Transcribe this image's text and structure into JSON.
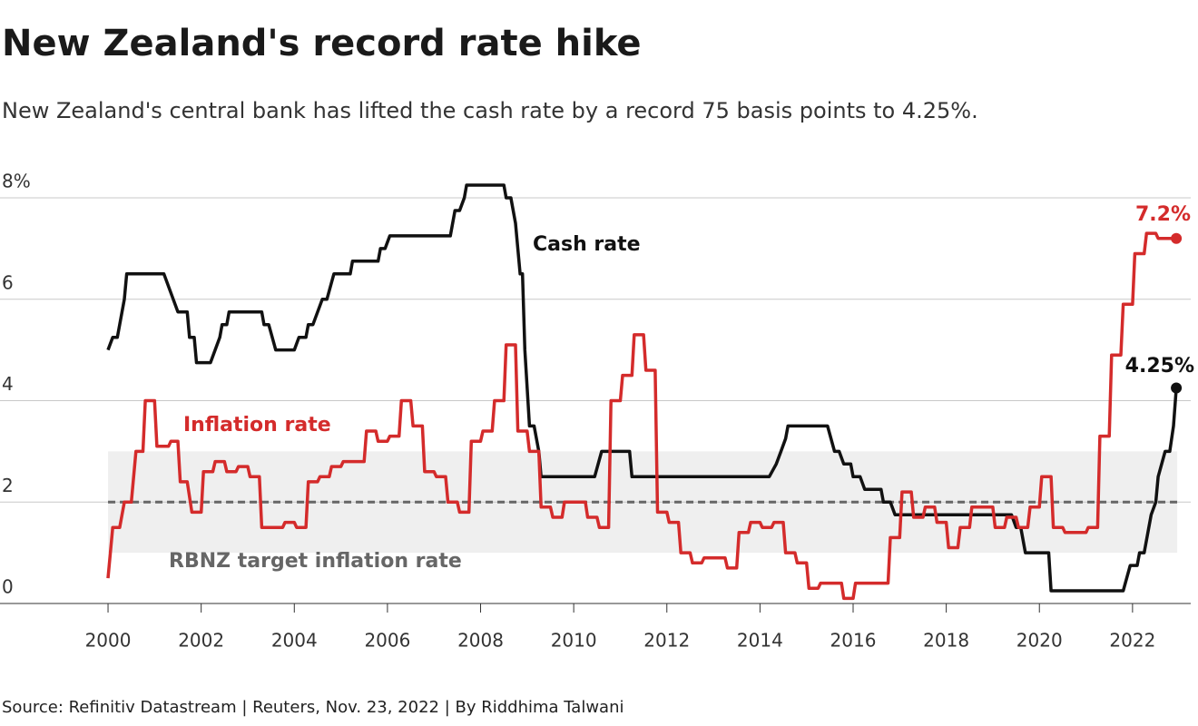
{
  "chart_data": {
    "type": "line",
    "title": "New Zealand's record rate hike",
    "subtitle": "New Zealand's central bank has lifted the cash rate by a record 75 basis points to 4.25%.",
    "source": "Source: Refinitiv Datastream | Reuters, Nov. 23, 2022 | By Riddhima Talwani",
    "xlim": [
      1997.68,
      2023.25
    ],
    "xticks": [
      2000,
      2002,
      2004,
      2006,
      2008,
      2010,
      2012,
      2014,
      2016,
      2018,
      2020,
      2022
    ],
    "ylim": [
      0,
      8
    ],
    "yticks": [
      0,
      2,
      4,
      6,
      {
        "value": 8,
        "label": "8%"
      }
    ],
    "grid": true,
    "target": {
      "label": "RBNZ target inflation rate",
      "value": 2,
      "band": [
        1,
        3
      ],
      "color": "#666666",
      "band_color": "#efefef"
    },
    "series": [
      {
        "name": "Cash rate",
        "color": "#111111",
        "end_label": "4.25%",
        "x": [
          2000.0,
          2000.1,
          2000.2,
          2000.35,
          2000.4,
          2001.2,
          2001.4,
          2001.5,
          2001.7,
          2001.75,
          2001.85,
          2001.9,
          2002.2,
          2002.4,
          2002.45,
          2002.55,
          2002.6,
          2003.3,
          2003.35,
          2003.45,
          2003.6,
          2004.0,
          2004.1,
          2004.25,
          2004.3,
          2004.4,
          2004.6,
          2004.7,
          2004.85,
          2005.2,
          2005.25,
          2005.8,
          2005.85,
          2005.95,
          2006.05,
          2007.35,
          2007.45,
          2007.55,
          2007.65,
          2007.7,
          2008.5,
          2008.55,
          2008.65,
          2008.75,
          2008.85,
          2008.9,
          2008.95,
          2009.05,
          2009.15,
          2009.25,
          2009.3,
          2010.45,
          2010.6,
          2011.2,
          2011.25,
          2014.2,
          2014.35,
          2014.45,
          2014.55,
          2014.6,
          2015.45,
          2015.6,
          2015.7,
          2015.8,
          2015.95,
          2016.0,
          2016.15,
          2016.25,
          2016.6,
          2016.65,
          2016.8,
          2016.9,
          2019.4,
          2019.5,
          2019.6,
          2019.7,
          2020.2,
          2020.25,
          2021.8,
          2021.95,
          2022.1,
          2022.15,
          2022.25,
          2022.4,
          2022.5,
          2022.55,
          2022.7,
          2022.8,
          2022.88,
          2022.94
        ],
        "values": [
          5.0,
          5.25,
          5.25,
          6.0,
          6.5,
          6.5,
          6.0,
          5.75,
          5.75,
          5.25,
          5.25,
          4.75,
          4.75,
          5.25,
          5.5,
          5.5,
          5.75,
          5.75,
          5.5,
          5.5,
          5.0,
          5.0,
          5.25,
          5.25,
          5.5,
          5.5,
          6.0,
          6.0,
          6.5,
          6.5,
          6.75,
          6.75,
          7.0,
          7.0,
          7.25,
          7.25,
          7.75,
          7.75,
          8.0,
          8.25,
          8.25,
          8.0,
          8.0,
          7.5,
          6.5,
          6.5,
          5.0,
          3.5,
          3.5,
          3.0,
          2.5,
          2.5,
          3.0,
          3.0,
          2.5,
          2.5,
          2.75,
          3.0,
          3.25,
          3.5,
          3.5,
          3.0,
          3.0,
          2.75,
          2.75,
          2.5,
          2.5,
          2.25,
          2.25,
          2.0,
          2.0,
          1.75,
          1.75,
          1.5,
          1.5,
          1.0,
          1.0,
          0.25,
          0.25,
          0.75,
          0.75,
          1.0,
          1.0,
          1.75,
          2.0,
          2.5,
          3.0,
          3.0,
          3.5,
          4.25
        ]
      },
      {
        "name": "Inflation rate",
        "color": "#d42b2b",
        "end_label": "7.2%",
        "x": [
          2000.0,
          2000.1,
          2000.25,
          2000.35,
          2000.5,
          2000.6,
          2000.75,
          2000.8,
          2001.0,
          2001.05,
          2001.3,
          2001.35,
          2001.5,
          2001.55,
          2001.7,
          2001.8,
          2002.0,
          2002.05,
          2002.25,
          2002.3,
          2002.5,
          2002.55,
          2002.75,
          2002.8,
          2003.0,
          2003.05,
          2003.25,
          2003.3,
          2003.75,
          2003.8,
          2004.0,
          2004.05,
          2004.25,
          2004.3,
          2004.5,
          2004.55,
          2004.75,
          2004.8,
          2005.0,
          2005.05,
          2005.5,
          2005.55,
          2005.75,
          2005.8,
          2006.0,
          2006.05,
          2006.25,
          2006.3,
          2006.5,
          2006.55,
          2006.75,
          2006.8,
          2007.0,
          2007.05,
          2007.25,
          2007.3,
          2007.5,
          2007.55,
          2007.75,
          2007.8,
          2008.0,
          2008.05,
          2008.25,
          2008.3,
          2008.5,
          2008.55,
          2008.75,
          2008.8,
          2009.0,
          2009.05,
          2009.25,
          2009.3,
          2009.5,
          2009.55,
          2009.75,
          2009.8,
          2010.25,
          2010.3,
          2010.5,
          2010.55,
          2010.75,
          2010.8,
          2011.0,
          2011.05,
          2011.25,
          2011.3,
          2011.5,
          2011.55,
          2011.75,
          2011.8,
          2012.0,
          2012.05,
          2012.25,
          2012.3,
          2012.5,
          2012.55,
          2012.75,
          2012.8,
          2013.25,
          2013.3,
          2013.5,
          2013.55,
          2013.75,
          2013.8,
          2014.0,
          2014.05,
          2014.25,
          2014.3,
          2014.5,
          2014.55,
          2014.75,
          2014.8,
          2015.0,
          2015.05,
          2015.25,
          2015.3,
          2015.75,
          2015.8,
          2016.0,
          2016.05,
          2016.75,
          2016.8,
          2017.0,
          2017.05,
          2017.25,
          2017.3,
          2017.5,
          2017.55,
          2017.75,
          2017.8,
          2018.0,
          2018.05,
          2018.25,
          2018.3,
          2018.5,
          2018.55,
          2019.0,
          2019.05,
          2019.25,
          2019.3,
          2019.5,
          2019.55,
          2019.75,
          2019.8,
          2020.0,
          2020.05,
          2020.25,
          2020.3,
          2020.5,
          2020.55,
          2021.0,
          2021.05,
          2021.25,
          2021.3,
          2021.5,
          2021.55,
          2021.75,
          2021.8,
          2022.0,
          2022.05,
          2022.25,
          2022.3,
          2022.5,
          2022.55,
          2022.94
        ],
        "values": [
          0.5,
          1.5,
          1.5,
          2.0,
          2.0,
          3.0,
          3.0,
          4.0,
          4.0,
          3.1,
          3.1,
          3.2,
          3.2,
          2.4,
          2.4,
          1.8,
          1.8,
          2.6,
          2.6,
          2.8,
          2.8,
          2.6,
          2.6,
          2.7,
          2.7,
          2.5,
          2.5,
          1.5,
          1.5,
          1.6,
          1.6,
          1.5,
          1.5,
          2.4,
          2.4,
          2.5,
          2.5,
          2.7,
          2.7,
          2.8,
          2.8,
          3.4,
          3.4,
          3.2,
          3.2,
          3.3,
          3.3,
          4.0,
          4.0,
          3.5,
          3.5,
          2.6,
          2.6,
          2.5,
          2.5,
          2.0,
          2.0,
          1.8,
          1.8,
          3.2,
          3.2,
          3.4,
          3.4,
          4.0,
          4.0,
          5.1,
          5.1,
          3.4,
          3.4,
          3.0,
          3.0,
          1.9,
          1.9,
          1.7,
          1.7,
          2.0,
          2.0,
          1.7,
          1.7,
          1.5,
          1.5,
          4.0,
          4.0,
          4.5,
          4.5,
          5.3,
          5.3,
          4.6,
          4.6,
          1.8,
          1.8,
          1.6,
          1.6,
          1.0,
          1.0,
          0.8,
          0.8,
          0.9,
          0.9,
          0.7,
          0.7,
          1.4,
          1.4,
          1.6,
          1.6,
          1.5,
          1.5,
          1.6,
          1.6,
          1.0,
          1.0,
          0.8,
          0.8,
          0.3,
          0.3,
          0.4,
          0.4,
          0.1,
          0.1,
          0.4,
          0.4,
          1.3,
          1.3,
          2.2,
          2.2,
          1.7,
          1.7,
          1.9,
          1.9,
          1.6,
          1.6,
          1.1,
          1.1,
          1.5,
          1.5,
          1.9,
          1.9,
          1.5,
          1.5,
          1.7,
          1.7,
          1.5,
          1.5,
          1.9,
          1.9,
          2.5,
          2.5,
          1.5,
          1.5,
          1.4,
          1.4,
          1.5,
          1.5,
          3.3,
          3.3,
          4.9,
          4.9,
          5.9,
          5.9,
          6.9,
          6.9,
          7.3,
          7.3,
          7.2,
          7.2
        ]
      }
    ]
  }
}
